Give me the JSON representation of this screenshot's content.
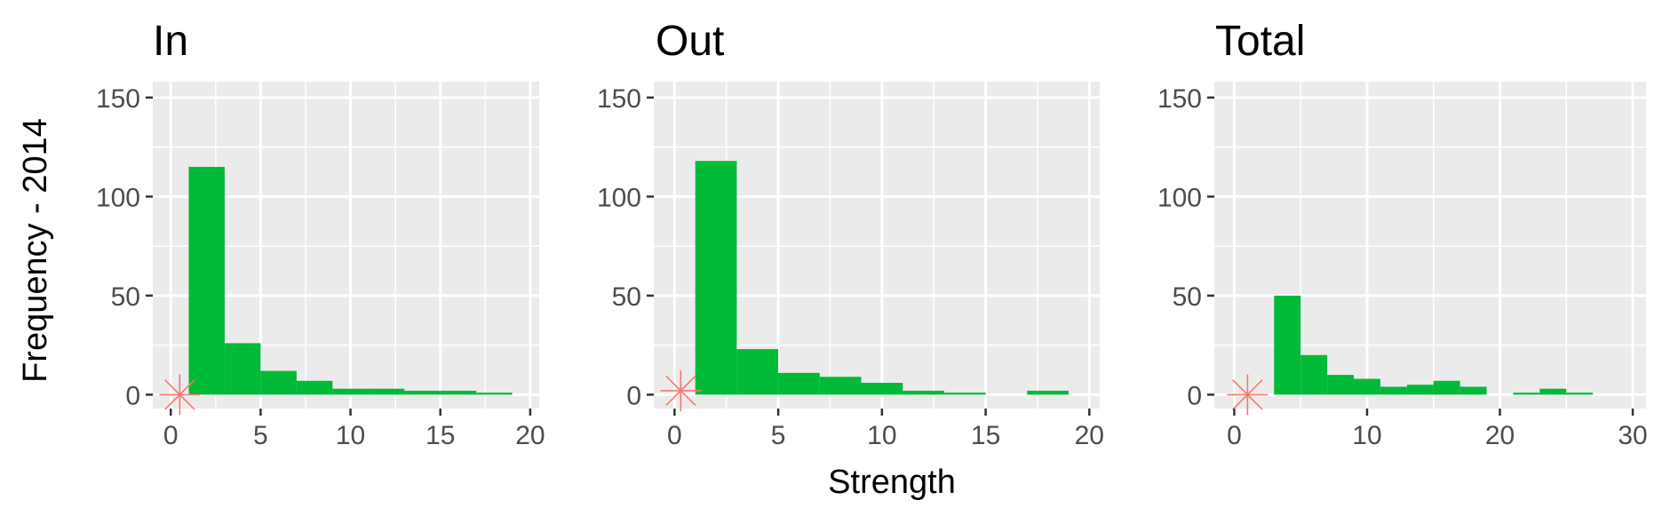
{
  "figure": {
    "ylabel": "Frequency - 2014",
    "xlabel": "Strength"
  },
  "colors": {
    "bar": "#00BA38",
    "marker": "#F8766D",
    "panel_bg": "#EBEBEB",
    "grid": "#FFFFFF",
    "tick_text": "#4D4D4D"
  },
  "chart_data": [
    {
      "type": "bar",
      "title": "In",
      "ylabel": "Frequency - 2014",
      "xlabel": "",
      "xlim": [
        -1,
        20.5
      ],
      "ylim": [
        -7,
        158
      ],
      "xticks": [
        0,
        5,
        10,
        15,
        20
      ],
      "yticks": [
        0,
        50,
        100,
        150
      ],
      "grid": true,
      "bin_width": 2,
      "bins": [
        {
          "start": 1,
          "end": 3,
          "count": 115
        },
        {
          "start": 3,
          "end": 5,
          "count": 26
        },
        {
          "start": 5,
          "end": 7,
          "count": 12
        },
        {
          "start": 7,
          "end": 9,
          "count": 7
        },
        {
          "start": 9,
          "end": 11,
          "count": 3
        },
        {
          "start": 11,
          "end": 13,
          "count": 3
        },
        {
          "start": 13,
          "end": 15,
          "count": 2
        },
        {
          "start": 15,
          "end": 17,
          "count": 2
        },
        {
          "start": 17,
          "end": 19,
          "count": 1
        }
      ],
      "marker": {
        "symbol": "asterisk",
        "x": 0.5,
        "y": 0
      }
    },
    {
      "type": "bar",
      "title": "Out",
      "ylabel": "",
      "xlabel": "Strength",
      "xlim": [
        -1,
        20.5
      ],
      "ylim": [
        -7,
        158
      ],
      "xticks": [
        0,
        5,
        10,
        15,
        20
      ],
      "yticks": [
        0,
        50,
        100,
        150
      ],
      "grid": true,
      "bin_width": 2,
      "bins": [
        {
          "start": 1,
          "end": 3,
          "count": 118
        },
        {
          "start": 3,
          "end": 5,
          "count": 23
        },
        {
          "start": 5,
          "end": 7,
          "count": 11
        },
        {
          "start": 7,
          "end": 9,
          "count": 9
        },
        {
          "start": 9,
          "end": 11,
          "count": 6
        },
        {
          "start": 11,
          "end": 13,
          "count": 2
        },
        {
          "start": 13,
          "end": 15,
          "count": 1
        },
        {
          "start": 15,
          "end": 17,
          "count": 0
        },
        {
          "start": 17,
          "end": 19,
          "count": 2
        }
      ],
      "marker": {
        "symbol": "asterisk",
        "x": 0.3,
        "y": 2
      }
    },
    {
      "type": "bar",
      "title": "Total",
      "ylabel": "",
      "xlabel": "",
      "xlim": [
        -1.5,
        31
      ],
      "ylim": [
        -7,
        158
      ],
      "xticks": [
        0,
        10,
        20,
        30
      ],
      "yticks": [
        0,
        50,
        100,
        150
      ],
      "grid": true,
      "bin_width": 2,
      "bins": [
        {
          "start": 3,
          "end": 5,
          "count": 50
        },
        {
          "start": 5,
          "end": 7,
          "count": 20
        },
        {
          "start": 7,
          "end": 9,
          "count": 10
        },
        {
          "start": 9,
          "end": 11,
          "count": 8
        },
        {
          "start": 11,
          "end": 13,
          "count": 4
        },
        {
          "start": 13,
          "end": 15,
          "count": 5
        },
        {
          "start": 15,
          "end": 17,
          "count": 7
        },
        {
          "start": 17,
          "end": 19,
          "count": 4
        },
        {
          "start": 19,
          "end": 21,
          "count": 0
        },
        {
          "start": 21,
          "end": 23,
          "count": 1
        },
        {
          "start": 23,
          "end": 25,
          "count": 3
        },
        {
          "start": 25,
          "end": 27,
          "count": 1
        }
      ],
      "marker": {
        "symbol": "asterisk",
        "x": 1,
        "y": 0
      }
    }
  ]
}
